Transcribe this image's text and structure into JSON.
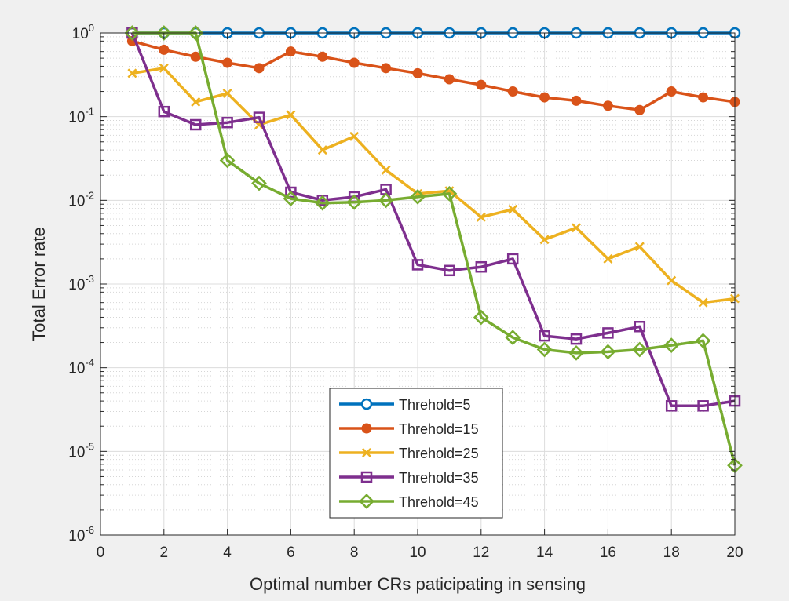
{
  "chart_data": {
    "type": "line",
    "title": "",
    "xlabel": "Optimal number CRs paticipating in sensing",
    "ylabel": "Total Error rate",
    "xlim": [
      0,
      20
    ],
    "ylim": [
      1e-06,
      1
    ],
    "yscale": "log",
    "grid": true,
    "minor_grid": true,
    "legend_position": "bottom-center",
    "x_ticks": [
      0,
      2,
      4,
      6,
      8,
      10,
      12,
      14,
      16,
      18,
      20
    ],
    "y_ticks": [
      {
        "value": 1,
        "base": "10",
        "exp": "0"
      },
      {
        "value": 0.1,
        "base": "10",
        "exp": "-1"
      },
      {
        "value": 0.01,
        "base": "10",
        "exp": "-2"
      },
      {
        "value": 0.001,
        "base": "10",
        "exp": "-3"
      },
      {
        "value": 0.0001,
        "base": "10",
        "exp": "-4"
      },
      {
        "value": 1e-05,
        "base": "10",
        "exp": "-5"
      },
      {
        "value": 1e-06,
        "base": "10",
        "exp": "-6"
      }
    ],
    "x": [
      1,
      2,
      3,
      4,
      5,
      6,
      7,
      8,
      9,
      10,
      11,
      12,
      13,
      14,
      15,
      16,
      17,
      18,
      19,
      20
    ],
    "series": [
      {
        "name": "Threhold=5",
        "color": "#0072BD",
        "marker": "circle",
        "values": [
          1,
          1,
          1,
          1,
          1,
          1,
          1,
          1,
          1,
          1,
          1,
          1,
          1,
          1,
          1,
          1,
          1,
          1,
          1,
          1
        ]
      },
      {
        "name": "Threhold=15",
        "color": "#D95319",
        "marker": "dot",
        "values": [
          0.8,
          0.63,
          0.52,
          0.44,
          0.38,
          0.6,
          0.52,
          0.44,
          0.38,
          0.33,
          0.28,
          0.24,
          0.2,
          0.17,
          0.155,
          0.135,
          0.12,
          0.2,
          0.17,
          0.15
        ]
      },
      {
        "name": "Threhold=25",
        "color": "#EDB120",
        "marker": "x",
        "values": [
          0.33,
          0.38,
          0.15,
          0.19,
          0.08,
          0.105,
          0.04,
          0.058,
          0.023,
          0.012,
          0.013,
          0.0063,
          0.0078,
          0.0034,
          0.0047,
          0.002,
          0.0028,
          0.0011,
          0.0006,
          0.00067
        ]
      },
      {
        "name": "Threhold=35",
        "color": "#7E2F8E",
        "marker": "square",
        "values": [
          1,
          0.115,
          0.08,
          0.085,
          0.098,
          0.0125,
          0.01,
          0.011,
          0.0135,
          0.0017,
          0.00145,
          0.0016,
          0.002,
          0.00024,
          0.00022,
          0.00026,
          0.00031,
          3.5e-05,
          3.5e-05,
          4e-05
        ]
      },
      {
        "name": "Threhold=45",
        "color": "#77AC30",
        "marker": "diamond",
        "values": [
          1,
          1,
          1,
          0.03,
          0.016,
          0.0105,
          0.0093,
          0.0095,
          0.01,
          0.011,
          0.012,
          0.0004,
          0.00023,
          0.000165,
          0.00015,
          0.000155,
          0.000165,
          0.000185,
          0.00021,
          6.8e-06
        ]
      }
    ]
  }
}
